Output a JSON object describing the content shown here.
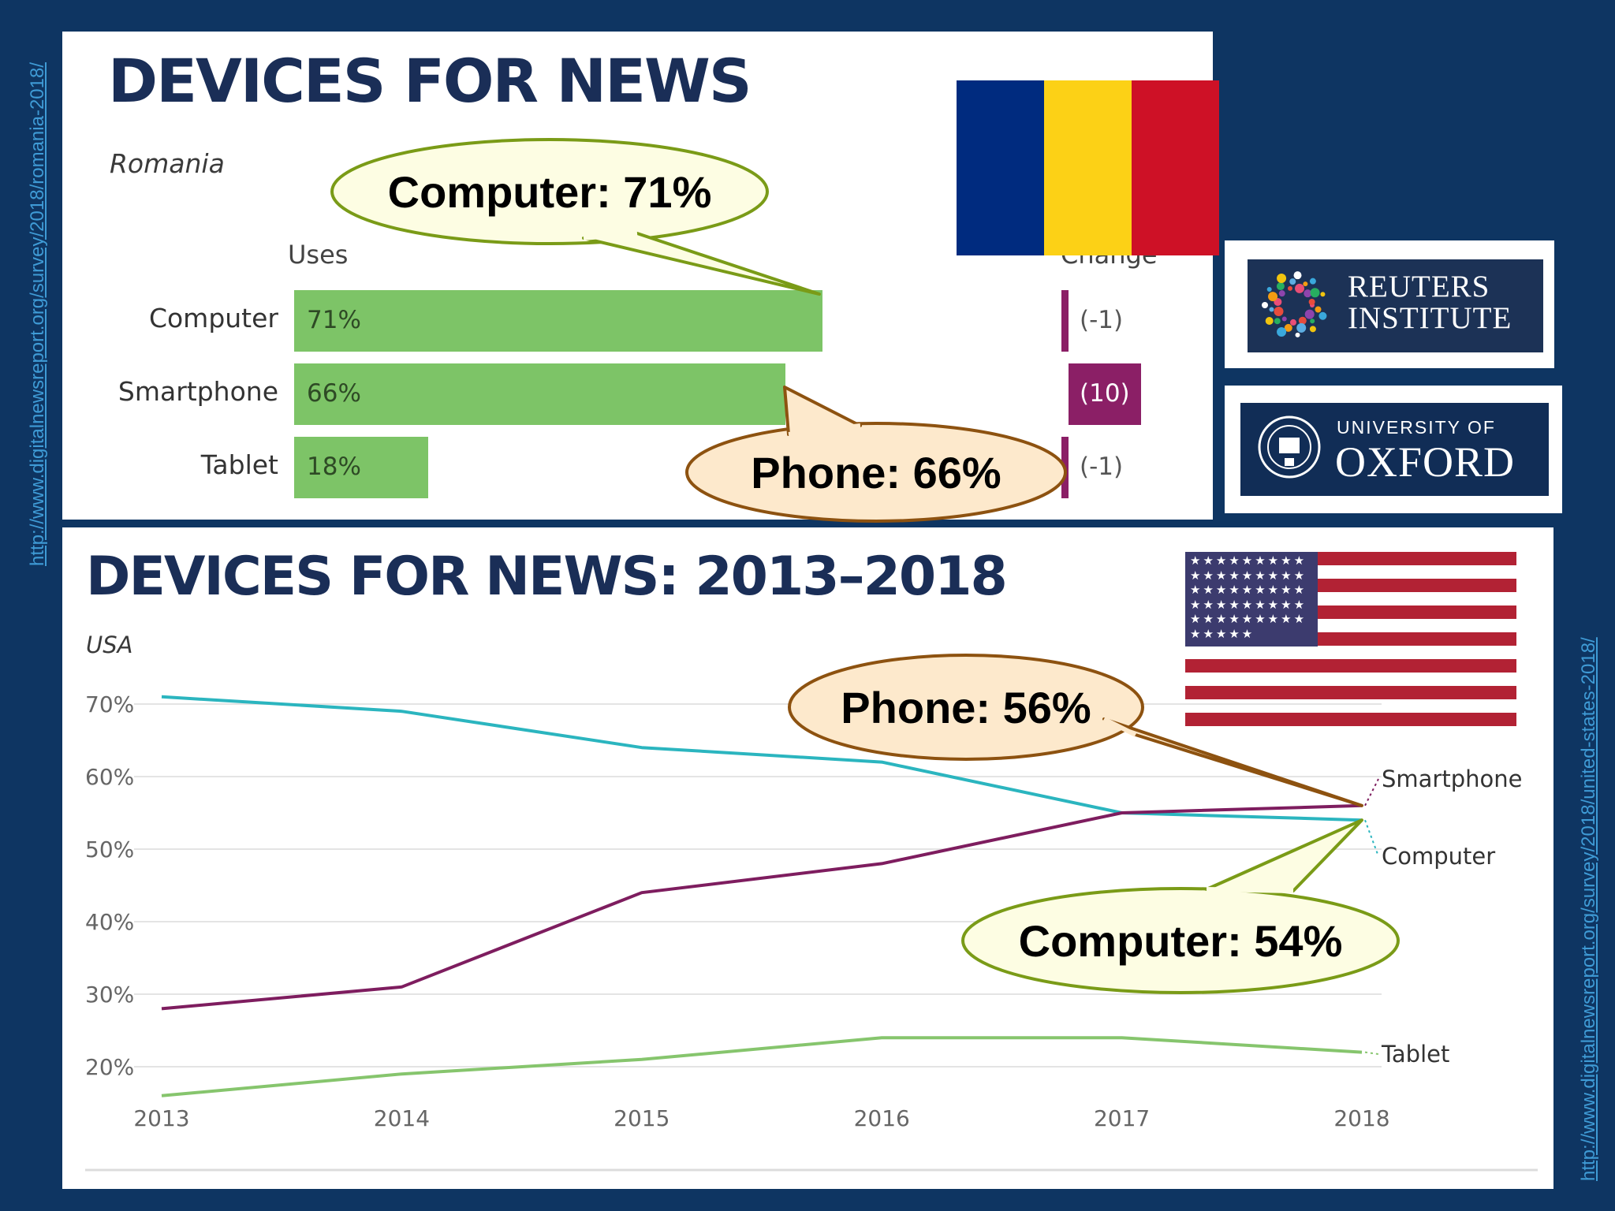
{
  "links": {
    "left": "http://www.digitalnewsreport.org/survey/2018/romania-2018/",
    "right": "http://www.digitalnewsreport.org/survey/2018/united-states-2018/"
  },
  "logos": {
    "reuters_line1": "REUTERS",
    "reuters_line2": "INSTITUTE",
    "oxford_small": "UNIVERSITY OF",
    "oxford_big": "OXFORD",
    "romania_flag_colors": [
      "#002b7f",
      "#fcd116",
      "#ce1126"
    ],
    "us_flag_colors": [
      "#b22234",
      "#ffffff",
      "#3c3b6e"
    ]
  },
  "colors": {
    "bar": "#7dc467",
    "change": "#8b1f66",
    "computer_line": "#2bb5bf",
    "smartphone_line": "#7e1d5f",
    "tablet_line": "#86c56d",
    "callout_green_fill": "#fdfde3",
    "callout_green_stroke": "#7a9b17",
    "callout_orange_fill": "#fde9cc",
    "callout_orange_stroke": "#8d5210"
  },
  "chart_data": [
    {
      "type": "bar",
      "title": "DEVICES FOR NEWS",
      "subtitle": "Romania",
      "column_headers": [
        "Uses",
        "Change"
      ],
      "categories": [
        "Computer",
        "Smartphone",
        "Tablet"
      ],
      "values": [
        71,
        66,
        18
      ],
      "value_labels": [
        "71%",
        "66%",
        "18%"
      ],
      "change": [
        -1,
        10,
        -1
      ],
      "change_labels": [
        "(-1)",
        "(10)",
        "(-1)"
      ],
      "callouts": [
        {
          "text": "Computer: 71%",
          "target": "Computer",
          "style": "green"
        },
        {
          "text": "Phone: 66%",
          "target": "Smartphone",
          "style": "orange"
        }
      ]
    },
    {
      "type": "line",
      "title": "DEVICES FOR NEWS: 2013–2018",
      "subtitle": "USA",
      "x": [
        2013,
        2014,
        2015,
        2016,
        2017,
        2018
      ],
      "x_tick_labels": [
        "2013",
        "2014",
        "2015",
        "2016",
        "2017",
        "2018"
      ],
      "y_tick_labels": [
        "20%",
        "30%",
        "40%",
        "50%",
        "60%",
        "70%"
      ],
      "ylim": [
        15,
        75
      ],
      "grid": true,
      "series": [
        {
          "name": "Computer",
          "color": "#2bb5bf",
          "values": [
            71,
            69,
            64,
            62,
            55,
            54
          ]
        },
        {
          "name": "Smartphone",
          "color": "#7e1d5f",
          "values": [
            28,
            31,
            44,
            48,
            55,
            56
          ]
        },
        {
          "name": "Tablet",
          "color": "#86c56d",
          "values": [
            16,
            19,
            21,
            24,
            24,
            22
          ]
        }
      ],
      "callouts": [
        {
          "text": "Phone: 56%",
          "target": "Smartphone",
          "style": "orange"
        },
        {
          "text": "Computer: 54%",
          "target": "Computer",
          "style": "green"
        }
      ]
    }
  ]
}
